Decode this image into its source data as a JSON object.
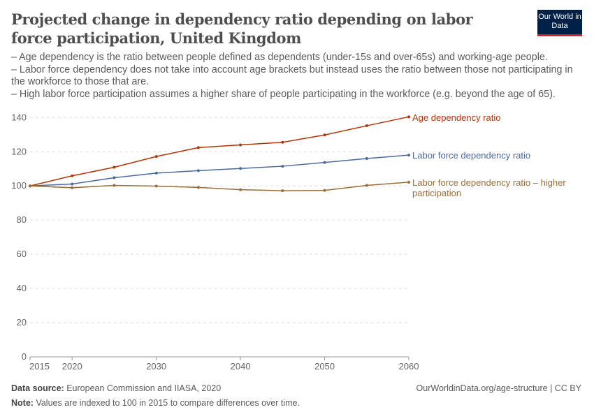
{
  "title": "Projected change in dependency ratio depending on labor force participation, United Kingdom",
  "subtitle": [
    "– Age dependency is the ratio between people defined as dependents (under-15s and over-65s) and working-age people.",
    "– Labor force dependency does not take into account age brackets but instead uses the ratio between those not participating in the workforce to those that are.",
    "– High labor force participation assumes a higher share of people participating in the workforce (e.g. beyond the age of 65)."
  ],
  "logo": "Our World in Data",
  "footer": {
    "source_label": "Data source:",
    "source": "European Commission and IIASA, 2020",
    "note_label": "Note:",
    "note": "Values are indexed to 100 in 2015 to compare differences over time.",
    "url": "OurWorldinData.org/age-structure | CC BY"
  },
  "chart_data": {
    "type": "line",
    "x": [
      2015,
      2020,
      2025,
      2030,
      2035,
      2040,
      2045,
      2050,
      2055,
      2060
    ],
    "xticks": [
      2015,
      2020,
      2030,
      2040,
      2050,
      2060
    ],
    "yticks": [
      0,
      20,
      40,
      60,
      80,
      100,
      120,
      140
    ],
    "ylim": [
      0,
      140
    ],
    "xlim": [
      2015,
      2060
    ],
    "grid": "horizontal dashed",
    "legend": "line-end labels",
    "series": [
      {
        "name": "Age dependency ratio",
        "color": "#b13507",
        "values": [
          100,
          105.9,
          110.9,
          117.2,
          122.4,
          124.0,
          125.5,
          129.8,
          135.2,
          140.4
        ]
      },
      {
        "name": "Labor force dependency ratio",
        "color": "#4c6a9c",
        "values": [
          100,
          101.1,
          104.8,
          107.5,
          108.9,
          110.2,
          111.5,
          113.7,
          116.0,
          118.0
        ]
      },
      {
        "name": "Labor force dependency ratio – higher participation",
        "color": "#996d39",
        "values": [
          100,
          98.9,
          100.3,
          99.9,
          99.1,
          97.8,
          97.2,
          97.4,
          100.3,
          102.2
        ]
      }
    ]
  }
}
